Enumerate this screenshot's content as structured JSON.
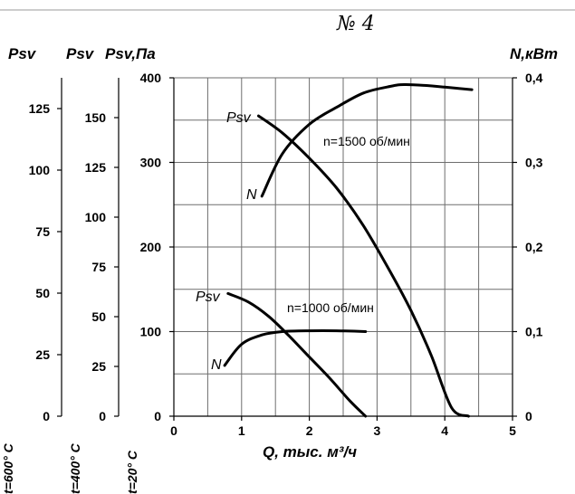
{
  "chart_data": {
    "type": "line",
    "title": "№ 4",
    "xlabel": "Q, тыс. м³/ч",
    "xlim": [
      0,
      5
    ],
    "x_ticks": [
      "0",
      "1",
      "2",
      "3",
      "4",
      "5"
    ],
    "grid": true,
    "left_axes": [
      {
        "header": "Psv",
        "temperature": "t=600° C",
        "ticks": [
          "0",
          "25",
          "50",
          "75",
          "100",
          "125"
        ],
        "max": 137.5
      },
      {
        "header": "Psv",
        "temperature": "t=400° C",
        "ticks": [
          "0",
          "25",
          "50",
          "75",
          "100",
          "125",
          "150"
        ],
        "max": 170
      },
      {
        "header": "Psv,Па",
        "temperature": "t=20° C",
        "ticks": [
          "0",
          "100",
          "200",
          "300",
          "400"
        ],
        "ylim": [
          0,
          400
        ]
      }
    ],
    "right_axis": {
      "header": "N,кВт",
      "ticks": [
        "0",
        "0,1",
        "0,2",
        "0,3",
        "0,4"
      ],
      "ylim": [
        0,
        0.4
      ]
    },
    "series": [
      {
        "name": "Psv",
        "speed_label": "n=1500 об/мин",
        "axis": "left",
        "x": [
          1.25,
          1.6,
          2.0,
          2.4,
          2.8,
          3.2,
          3.5,
          3.8,
          4.1,
          4.35
        ],
        "y": [
          355,
          335,
          305,
          270,
          225,
          170,
          125,
          72,
          10,
          0
        ]
      },
      {
        "name": "N",
        "speed_label": "n=1500 об/мин",
        "axis": "right",
        "x": [
          1.3,
          1.6,
          2.0,
          2.4,
          2.8,
          3.2,
          3.4,
          3.7,
          4.0,
          4.4
        ],
        "y": [
          0.26,
          0.31,
          0.345,
          0.365,
          0.382,
          0.39,
          0.392,
          0.391,
          0.389,
          0.386
        ]
      },
      {
        "name": "Psv",
        "speed_label": "n=1000 об/мин",
        "axis": "left",
        "x": [
          0.8,
          1.1,
          1.4,
          1.7,
          2.0,
          2.3,
          2.6,
          2.83
        ],
        "y": [
          145,
          135,
          118,
          95,
          70,
          45,
          18,
          0
        ]
      },
      {
        "name": "N",
        "speed_label": "n=1000 об/мин",
        "axis": "right",
        "x": [
          0.75,
          1.0,
          1.3,
          1.6,
          2.0,
          2.4,
          2.83
        ],
        "y": [
          0.06,
          0.085,
          0.096,
          0.1,
          0.101,
          0.101,
          0.1
        ]
      }
    ]
  },
  "labels": {
    "psv_1500": "Psv",
    "n_1500": "N",
    "speed_1500": "n=1500 об/мин",
    "psv_1000": "Psv",
    "n_1000": "N",
    "speed_1000": "n=1000 об/мин"
  }
}
